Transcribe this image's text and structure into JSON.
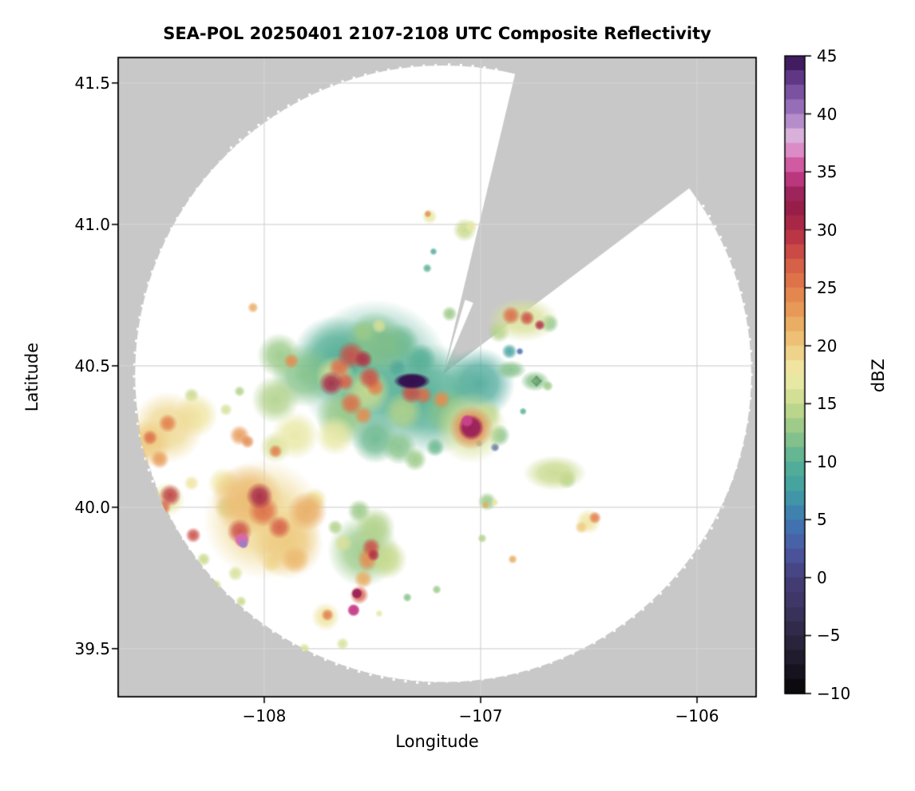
{
  "title": "SEA-POL 20250401 2107-2108 UTC Composite Reflectivity",
  "chart_data": {
    "type": "heatmap",
    "subtype": "radar-composite-reflectivity-ppi",
    "title": "SEA-POL 20250401 2107-2108 UTC Composite Reflectivity",
    "xlabel": "Longitude",
    "ylabel": "Latitude",
    "xlim": [
      -108.675,
      -105.727
    ],
    "ylim": [
      39.33,
      41.59
    ],
    "x_ticks": [
      -108,
      -107,
      -106
    ],
    "y_ticks": [
      39.5,
      40.0,
      40.5,
      41.0,
      41.5
    ],
    "grid": true,
    "grid_color": "#d4d4d4",
    "background_color": "#c8c8c8",
    "scanned_area_color": "#ffffff",
    "colorbar": {
      "label": "dBZ",
      "vmin": -10,
      "vmax": 45,
      "ticks": [
        -10,
        -5,
        0,
        5,
        10,
        15,
        20,
        25,
        30,
        35,
        40,
        45
      ],
      "step": 1.25
    },
    "radar": {
      "center_lon": -107.173,
      "center_lat": 40.472,
      "range_deg_lat": 1.09,
      "blocked_sector_azimuth_deg": [
        13.5,
        53.0
      ],
      "apex_gap_azimuth_deg": [
        16.5,
        23.0
      ],
      "apex_gap_range_frac": 0.25
    },
    "colormap": {
      "name": "ChaseSpectral-like",
      "stops": [
        [
          -10,
          "#060606"
        ],
        [
          -7.5,
          "#1c1726"
        ],
        [
          -5,
          "#2d2742"
        ],
        [
          -2.5,
          "#3b3462"
        ],
        [
          0,
          "#463e78"
        ],
        [
          2.5,
          "#4b5aa5"
        ],
        [
          5,
          "#3e78b2"
        ],
        [
          7.5,
          "#40a0a2"
        ],
        [
          10,
          "#57b096"
        ],
        [
          12.5,
          "#90c687"
        ],
        [
          15,
          "#c8da8d"
        ],
        [
          17.5,
          "#f0ecab"
        ],
        [
          20,
          "#eeca7f"
        ],
        [
          22.5,
          "#e8a35b"
        ],
        [
          25,
          "#e27d4b"
        ],
        [
          27.5,
          "#d25647"
        ],
        [
          30,
          "#b22b44"
        ],
        [
          32.5,
          "#8f1a4c"
        ],
        [
          35,
          "#c9418d"
        ],
        [
          36.5,
          "#da7fc0"
        ],
        [
          38,
          "#dcb3dc"
        ],
        [
          40,
          "#a37cc2"
        ],
        [
          42.5,
          "#6e4497"
        ],
        [
          45,
          "#330e4e"
        ]
      ]
    },
    "echoes_format": [
      "lon",
      "lat",
      "radius_deg_lat",
      "dBZ",
      "x_stretch_optional"
    ],
    "echoes": [
      [
        -107.487,
        40.466,
        0.268,
        10
      ],
      [
        -107.672,
        40.523,
        0.155,
        10
      ],
      [
        -107.229,
        40.381,
        0.198,
        10
      ],
      [
        -107.007,
        40.438,
        0.127,
        9
      ],
      [
        -107.819,
        40.466,
        0.113,
        12
      ],
      [
        -107.93,
        40.537,
        0.079,
        13
      ],
      [
        -107.875,
        40.517,
        0.028,
        24
      ],
      [
        -107.948,
        40.381,
        0.085,
        14
      ],
      [
        -107.487,
        40.579,
        0.113,
        12
      ],
      [
        -107.598,
        40.537,
        0.051,
        28
      ],
      [
        -107.542,
        40.523,
        0.034,
        30
      ],
      [
        -107.653,
        40.494,
        0.04,
        26
      ],
      [
        -107.69,
        40.438,
        0.045,
        31
      ],
      [
        -107.627,
        40.444,
        0.034,
        27
      ],
      [
        -107.513,
        40.458,
        0.042,
        28
      ],
      [
        -107.487,
        40.424,
        0.034,
        25
      ],
      [
        -107.317,
        40.446,
        0.03,
        45,
        2.2
      ],
      [
        -107.387,
        40.494,
        0.034,
        5
      ],
      [
        -107.45,
        40.571,
        0.056,
        2
      ],
      [
        -107.321,
        40.404,
        0.04,
        28
      ],
      [
        -107.266,
        40.396,
        0.034,
        26
      ],
      [
        -107.181,
        40.381,
        0.034,
        24
      ],
      [
        -107.155,
        40.339,
        0.085,
        12
      ],
      [
        -107.044,
        40.282,
        0.127,
        16
      ],
      [
        -107.044,
        40.282,
        0.079,
        25
      ],
      [
        -107.044,
        40.282,
        0.045,
        33
      ],
      [
        -107.063,
        40.305,
        0.023,
        35
      ],
      [
        -106.97,
        40.325,
        0.051,
        14
      ],
      [
        -106.915,
        40.254,
        0.04,
        12
      ],
      [
        -107.635,
        40.325,
        0.099,
        13
      ],
      [
        -107.672,
        40.254,
        0.071,
        17
      ],
      [
        -107.856,
        40.254,
        0.085,
        17
      ],
      [
        -107.948,
        40.212,
        0.056,
        16
      ],
      [
        -107.487,
        40.24,
        0.085,
        11
      ],
      [
        -107.376,
        40.212,
        0.062,
        12
      ],
      [
        -107.303,
        40.169,
        0.042,
        13
      ],
      [
        -107.21,
        40.212,
        0.034,
        11
      ],
      [
        -107.598,
        40.367,
        0.042,
        26
      ],
      [
        -107.542,
        40.325,
        0.034,
        24
      ],
      [
        -107.376,
        40.579,
        0.071,
        11
      ],
      [
        -107.277,
        40.523,
        0.056,
        10
      ],
      [
        -107.542,
        40.621,
        0.042,
        13
      ],
      [
        -107.469,
        40.641,
        0.028,
        16
      ],
      [
        -106.804,
        40.664,
        0.079,
        16,
        1.6
      ],
      [
        -106.86,
        40.678,
        0.034,
        26
      ],
      [
        -106.786,
        40.669,
        0.028,
        28
      ],
      [
        -106.727,
        40.644,
        0.02,
        30
      ],
      [
        -106.683,
        40.65,
        0.034,
        12
      ],
      [
        -106.915,
        40.621,
        0.04,
        14
      ],
      [
        -106.867,
        40.551,
        0.028,
        8
      ],
      [
        -106.819,
        40.551,
        0.014,
        4
      ],
      [
        -106.86,
        40.486,
        0.034,
        12,
        1.6
      ],
      [
        -106.749,
        40.446,
        0.037,
        12,
        1.4
      ],
      [
        -106.742,
        40.446,
        0.014,
        -10
      ],
      [
        -106.69,
        40.429,
        0.02,
        13
      ],
      [
        -106.804,
        40.339,
        0.014,
        10
      ],
      [
        -108.446,
        40.282,
        0.127,
        19
      ],
      [
        -108.539,
        40.226,
        0.085,
        20
      ],
      [
        -108.317,
        40.325,
        0.079,
        18
      ],
      [
        -108.446,
        40.297,
        0.034,
        25
      ],
      [
        -108.528,
        40.246,
        0.028,
        26
      ],
      [
        -108.483,
        40.169,
        0.034,
        23
      ],
      [
        -108.336,
        40.395,
        0.028,
        15
      ],
      [
        -108.114,
        40.254,
        0.037,
        23
      ],
      [
        -108.077,
        40.232,
        0.025,
        24
      ],
      [
        -107.948,
        40.198,
        0.025,
        25
      ],
      [
        -108.177,
        40.345,
        0.023,
        16
      ],
      [
        -108.114,
        40.41,
        0.02,
        14
      ],
      [
        -108.435,
        40.042,
        0.04,
        29
      ],
      [
        -108.465,
        40.0,
        0.028,
        26
      ],
      [
        -108.446,
        40.028,
        0.062,
        17
      ],
      [
        -108.557,
        40.071,
        0.028,
        15
      ],
      [
        -108.336,
        40.085,
        0.028,
        18
      ],
      [
        -108.328,
        39.901,
        0.028,
        28
      ],
      [
        -108.28,
        39.816,
        0.025,
        15
      ],
      [
        -108.004,
        39.958,
        0.212,
        19
      ],
      [
        -108.077,
        40.028,
        0.127,
        21
      ],
      [
        -107.893,
        39.873,
        0.127,
        20
      ],
      [
        -108.022,
        40.04,
        0.048,
        31
      ],
      [
        -108.004,
        39.986,
        0.056,
        26
      ],
      [
        -107.93,
        39.929,
        0.042,
        27
      ],
      [
        -108.114,
        39.915,
        0.045,
        28
      ],
      [
        -108.103,
        39.884,
        0.028,
        36
      ],
      [
        -108.096,
        39.87,
        0.017,
        40
      ],
      [
        -108.17,
        40.0,
        0.045,
        15
      ],
      [
        -108.188,
        40.085,
        0.056,
        18
      ],
      [
        -107.801,
        39.986,
        0.071,
        22
      ],
      [
        -107.764,
        40.028,
        0.042,
        18
      ],
      [
        -107.856,
        39.816,
        0.051,
        21
      ],
      [
        -107.967,
        39.802,
        0.034,
        18
      ],
      [
        -108.133,
        39.766,
        0.028,
        16
      ],
      [
        -108.225,
        39.723,
        0.023,
        15
      ],
      [
        -108.107,
        39.667,
        0.02,
        15
      ],
      [
        -107.542,
        39.845,
        0.127,
        13
      ],
      [
        -107.487,
        39.929,
        0.071,
        14
      ],
      [
        -107.561,
        39.986,
        0.042,
        13
      ],
      [
        -107.432,
        39.816,
        0.071,
        15
      ],
      [
        -107.524,
        39.816,
        0.045,
        24,
        0.8
      ],
      [
        -107.506,
        39.859,
        0.034,
        28
      ],
      [
        -107.495,
        39.831,
        0.023,
        30
      ],
      [
        -107.542,
        39.746,
        0.034,
        22
      ],
      [
        -107.561,
        39.69,
        0.034,
        27
      ],
      [
        -107.572,
        39.695,
        0.02,
        33
      ],
      [
        -107.587,
        39.636,
        0.023,
        35
      ],
      [
        -107.716,
        39.613,
        0.051,
        18
      ],
      [
        -107.708,
        39.619,
        0.023,
        25
      ],
      [
        -107.638,
        39.517,
        0.023,
        16
      ],
      [
        -107.815,
        39.5,
        0.02,
        16
      ],
      [
        -107.339,
        39.681,
        0.017,
        12
      ],
      [
        -107.203,
        39.709,
        0.017,
        13
      ],
      [
        -107.469,
        39.624,
        0.014,
        17
      ],
      [
        -107.635,
        39.873,
        0.034,
        16
      ],
      [
        -107.672,
        39.929,
        0.028,
        14
      ],
      [
        -106.657,
        40.121,
        0.062,
        15,
        1.8
      ],
      [
        -106.601,
        40.099,
        0.034,
        14
      ],
      [
        -106.502,
        39.949,
        0.045,
        18
      ],
      [
        -106.472,
        39.963,
        0.023,
        25
      ],
      [
        -106.535,
        39.929,
        0.023,
        20
      ],
      [
        -106.97,
        40.02,
        0.034,
        13
      ],
      [
        -106.978,
        40.008,
        0.014,
        22
      ],
      [
        -106.993,
        39.89,
        0.017,
        14
      ],
      [
        -106.852,
        39.816,
        0.017,
        22
      ],
      [
        -106.934,
        40.017,
        0.014,
        18
      ],
      [
        -107.236,
        41.028,
        0.028,
        17
      ],
      [
        -107.244,
        41.037,
        0.014,
        24
      ],
      [
        -107.074,
        40.98,
        0.042,
        15
      ],
      [
        -107.044,
        40.994,
        0.023,
        17
      ],
      [
        -107.218,
        40.904,
        0.014,
        9
      ],
      [
        -107.247,
        40.845,
        0.017,
        10
      ],
      [
        -108.052,
        40.706,
        0.02,
        22
      ],
      [
        -107.144,
        40.684,
        0.028,
        13
      ],
      [
        -106.934,
        40.212,
        0.017,
        3
      ],
      [
        -107.007,
        40.226,
        0.014,
        2
      ],
      [
        -107.524,
        40.41,
        0.085,
        15
      ],
      [
        -107.672,
        40.466,
        0.071,
        16
      ],
      [
        -107.358,
        40.339,
        0.071,
        14
      ]
    ]
  }
}
